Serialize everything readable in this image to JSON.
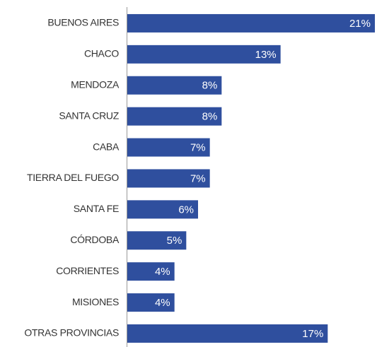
{
  "chart_data": {
    "type": "bar",
    "orientation": "horizontal",
    "categories": [
      "BUENOS AIRES",
      "CHACO",
      "MENDOZA",
      "SANTA CRUZ",
      "CABA",
      "TIERRA DEL FUEGO",
      "SANTA FE",
      "CÓRDOBA",
      "CORRIENTES",
      "MISIONES",
      "OTRAS PROVINCIAS"
    ],
    "values": [
      21,
      13,
      8,
      8,
      7,
      7,
      6,
      5,
      4,
      4,
      17
    ],
    "value_labels": [
      "21%",
      "13%",
      "8%",
      "8%",
      "7%",
      "7%",
      "6%",
      "5%",
      "4%",
      "4%",
      "17%"
    ],
    "color": "#2f4f9e"
  }
}
